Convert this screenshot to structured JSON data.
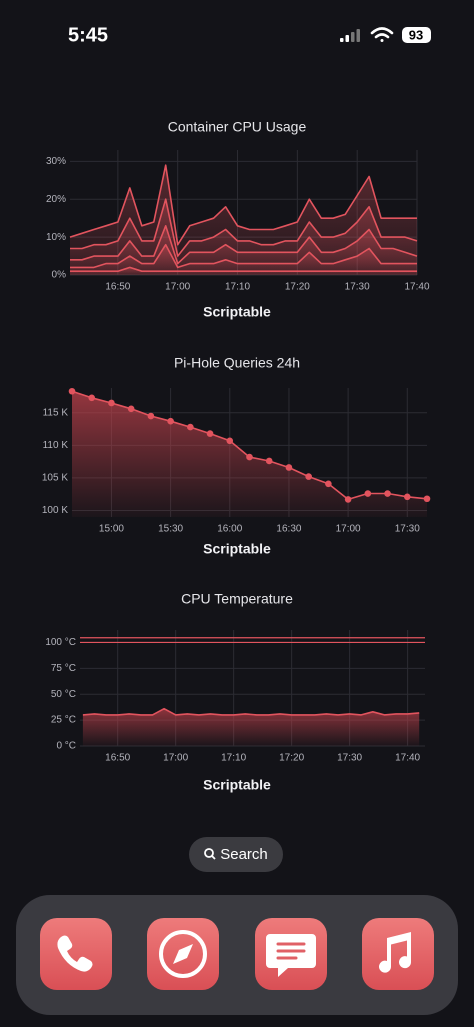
{
  "status_bar": {
    "time": "5:45",
    "battery": "93"
  },
  "chart_data": [
    {
      "type": "line",
      "title": "Container CPU Usage",
      "footer": "Scriptable",
      "fill": true,
      "markers": false,
      "x": [
        1002,
        1004,
        1006,
        1008,
        1010,
        1012,
        1014,
        1016,
        1018,
        1020,
        1022,
        1024,
        1026,
        1028,
        1030,
        1032,
        1034,
        1036,
        1038,
        1040,
        1042,
        1044,
        1046,
        1048,
        1050,
        1052,
        1054,
        1056,
        1058,
        1060
      ],
      "xlim": [
        1002,
        1060
      ],
      "xticks": [
        {
          "value": 1010,
          "label": "16:50"
        },
        {
          "value": 1020,
          "label": "17:00"
        },
        {
          "value": 1030,
          "label": "17:10"
        },
        {
          "value": 1040,
          "label": "17:20"
        },
        {
          "value": 1050,
          "label": "17:30"
        },
        {
          "value": 1060,
          "label": "17:40"
        }
      ],
      "ylim": [
        0,
        33
      ],
      "yticks": [
        {
          "value": 0,
          "label": "0%"
        },
        {
          "value": 10,
          "label": "10%"
        },
        {
          "value": 20,
          "label": "20%"
        },
        {
          "value": 30,
          "label": "30%"
        }
      ],
      "series": [
        {
          "color": "#e2545e",
          "values": [
            10,
            11,
            12,
            13,
            14,
            23,
            13,
            14,
            29,
            8,
            13,
            14,
            15,
            18,
            13,
            12,
            12,
            12,
            13,
            14,
            20,
            15,
            15,
            16,
            21,
            26,
            15,
            15,
            15,
            15
          ]
        },
        {
          "color": "#e2545e",
          "values": [
            7,
            7,
            8,
            8,
            9,
            15,
            9,
            9,
            20,
            5,
            9,
            9,
            10,
            12,
            9,
            9,
            8,
            8,
            9,
            9,
            14,
            10,
            10,
            11,
            14,
            18,
            10,
            10,
            10,
            9
          ]
        },
        {
          "color": "#e2545e",
          "values": [
            4,
            4,
            5,
            5,
            5,
            9,
            5,
            5,
            13,
            3,
            6,
            6,
            6,
            8,
            6,
            6,
            6,
            6,
            6,
            6,
            10,
            6,
            6,
            7,
            9,
            12,
            7,
            7,
            6,
            5
          ]
        },
        {
          "color": "#e2545e",
          "values": [
            2,
            2,
            2,
            3,
            3,
            5,
            3,
            3,
            8,
            2,
            3,
            3,
            3,
            4,
            3,
            3,
            3,
            3,
            3,
            3,
            6,
            3,
            3,
            4,
            5,
            7,
            3,
            3,
            3,
            3
          ]
        },
        {
          "color": "#e2545e",
          "values": [
            1,
            1,
            1,
            1,
            1,
            2,
            1,
            1,
            1,
            1,
            1,
            1,
            1,
            1,
            1,
            1,
            1,
            1,
            1,
            1,
            1,
            1,
            1,
            1,
            1,
            1,
            1,
            1,
            1,
            1
          ]
        }
      ]
    },
    {
      "type": "line",
      "title": "Pi-Hole Queries 24h",
      "footer": "Scriptable",
      "fill": true,
      "markers": true,
      "x": [
        880,
        890,
        900,
        910,
        920,
        930,
        940,
        950,
        960,
        970,
        980,
        990,
        1000,
        1010,
        1020,
        1030,
        1040,
        1050,
        1060
      ],
      "xlim": [
        880,
        1060
      ],
      "xticks": [
        {
          "value": 900,
          "label": "15:00"
        },
        {
          "value": 930,
          "label": "15:30"
        },
        {
          "value": 960,
          "label": "16:00"
        },
        {
          "value": 990,
          "label": "16:30"
        },
        {
          "value": 1020,
          "label": "17:00"
        },
        {
          "value": 1050,
          "label": "17:30"
        }
      ],
      "ylim": [
        99,
        118.8
      ],
      "yticks": [
        {
          "value": 100,
          "label": "100 K"
        },
        {
          "value": 105,
          "label": "105 K"
        },
        {
          "value": 110,
          "label": "110 K"
        },
        {
          "value": 115,
          "label": "115 K"
        }
      ],
      "series": [
        {
          "color": "#e2545e",
          "values": [
            118.3,
            117.3,
            116.5,
            115.6,
            114.5,
            113.7,
            112.8,
            111.8,
            110.7,
            108.2,
            107.6,
            106.6,
            105.2,
            104.1,
            101.7,
            102.6,
            102.6,
            102.1,
            101.8
          ]
        }
      ]
    },
    {
      "type": "line",
      "title": "CPU Temperature",
      "footer": "Scriptable",
      "fill": true,
      "markers": false,
      "x": [
        1004,
        1006,
        1008,
        1010,
        1012,
        1014,
        1016,
        1018,
        1020,
        1022,
        1024,
        1026,
        1028,
        1030,
        1032,
        1034,
        1036,
        1038,
        1040,
        1042,
        1044,
        1046,
        1048,
        1050,
        1052,
        1054,
        1056,
        1058,
        1060,
        1062
      ],
      "xlim": [
        1003.5,
        1063
      ],
      "xticks": [
        {
          "value": 1010,
          "label": "16:50"
        },
        {
          "value": 1020,
          "label": "17:00"
        },
        {
          "value": 1030,
          "label": "17:10"
        },
        {
          "value": 1040,
          "label": "17:20"
        },
        {
          "value": 1050,
          "label": "17:30"
        },
        {
          "value": 1060,
          "label": "17:40"
        }
      ],
      "ylim": [
        0,
        112
      ],
      "yticks": [
        {
          "value": 0,
          "label": "0 °C"
        },
        {
          "value": 25,
          "label": "25 °C"
        },
        {
          "value": 50,
          "label": "50 °C"
        },
        {
          "value": 75,
          "label": "75 °C"
        },
        {
          "value": 100,
          "label": "100 °C"
        }
      ],
      "hlines": [
        100,
        104.5
      ],
      "series": [
        {
          "color": "#e2545e",
          "values": [
            30,
            31,
            30,
            30,
            31,
            30,
            30,
            36,
            30,
            31,
            30,
            31,
            30,
            30,
            31,
            30,
            30,
            31,
            30,
            30,
            30,
            31,
            30,
            31,
            30,
            33,
            30,
            31,
            31,
            32
          ]
        }
      ]
    }
  ],
  "search": "Search"
}
